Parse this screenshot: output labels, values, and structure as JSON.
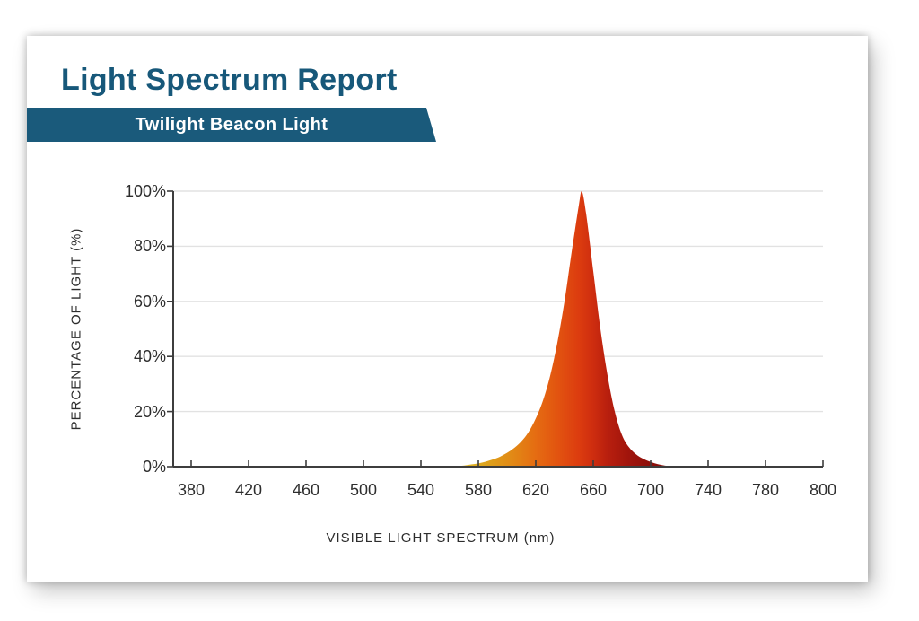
{
  "report": {
    "title": "Light Spectrum Report",
    "banner": "Twilight Beacon Light"
  },
  "theme": {
    "accent_teal": "#17587a",
    "banner_teal": "#1a5a7b",
    "text_dark": "#2d2d2d",
    "axis_color": "#3d3d3d",
    "grid_color": "#e2e2e2",
    "card_background": "#ffffff"
  },
  "chart_data": {
    "type": "area",
    "title": "",
    "xlabel": "VISIBLE LIGHT SPECTRUM (nm)",
    "ylabel": "PERCENTAGE OF LIGHT (%)",
    "x_ticks": [
      380,
      420,
      460,
      500,
      540,
      580,
      620,
      660,
      700,
      740,
      780,
      800
    ],
    "x_tick_note": "ticks equally spaced; final interval 780-800 is 20 nm",
    "y_ticks": [
      0,
      20,
      40,
      60,
      80,
      100
    ],
    "y_tick_suffix": "%",
    "ylim": [
      0,
      100
    ],
    "grid": "horizontal",
    "legend": "none",
    "series": [
      {
        "name": "Twilight Beacon Light spectrum",
        "peak_nm": 652,
        "peak_pct": 100,
        "points": [
          [
            560,
            0
          ],
          [
            565,
            0.15
          ],
          [
            570,
            0.4
          ],
          [
            575,
            0.8
          ],
          [
            580,
            1.2
          ],
          [
            585,
            1.8
          ],
          [
            590,
            2.6
          ],
          [
            595,
            3.6
          ],
          [
            600,
            5
          ],
          [
            605,
            6.8
          ],
          [
            610,
            9.2
          ],
          [
            615,
            12.6
          ],
          [
            620,
            17.5
          ],
          [
            625,
            24
          ],
          [
            630,
            33
          ],
          [
            635,
            45
          ],
          [
            640,
            60
          ],
          [
            645,
            78
          ],
          [
            650,
            95
          ],
          [
            652,
            100
          ],
          [
            655,
            92
          ],
          [
            660,
            71
          ],
          [
            665,
            50
          ],
          [
            670,
            33
          ],
          [
            675,
            20
          ],
          [
            680,
            11.5
          ],
          [
            685,
            7
          ],
          [
            690,
            4.4
          ],
          [
            695,
            2.8
          ],
          [
            700,
            1.7
          ],
          [
            705,
            0.9
          ],
          [
            710,
            0.35
          ],
          [
            715,
            0
          ]
        ]
      }
    ],
    "gradient": [
      {
        "nm": 560,
        "color": "#e9cb45"
      },
      {
        "nm": 575,
        "color": "#dfb224"
      },
      {
        "nm": 590,
        "color": "#de9c1a"
      },
      {
        "nm": 605,
        "color": "#e28715"
      },
      {
        "nm": 620,
        "color": "#e56c12"
      },
      {
        "nm": 635,
        "color": "#e25410"
      },
      {
        "nm": 650,
        "color": "#dc3c0f"
      },
      {
        "nm": 660,
        "color": "#ce2d0f"
      },
      {
        "nm": 670,
        "color": "#b81f0e"
      },
      {
        "nm": 685,
        "color": "#a0140c"
      },
      {
        "nm": 700,
        "color": "#8d0e09"
      },
      {
        "nm": 715,
        "color": "#870c08"
      }
    ]
  }
}
